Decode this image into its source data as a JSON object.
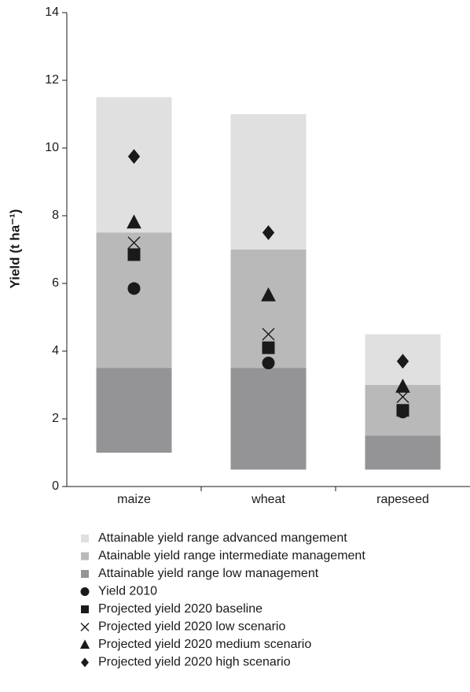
{
  "chart_data": {
    "type": "range-points",
    "ylabel": "Yield (t ha⁻¹)",
    "categories": [
      "maize",
      "wheat",
      "rapeseed"
    ],
    "ylim": [
      0,
      14
    ],
    "yticks": [
      0,
      2,
      4,
      6,
      8,
      10,
      12,
      14
    ],
    "series": [
      {
        "name": "Attainable yield range advanced mangement",
        "color": "#e0e0e0",
        "low": [
          7.5,
          7,
          3
        ],
        "high": [
          11.5,
          11,
          4.5
        ]
      },
      {
        "name": "Atainable yield range intermediate management",
        "color": "#b9b9ba",
        "low": [
          3.5,
          3.5,
          1.5
        ],
        "high": [
          7.5,
          7,
          3
        ]
      },
      {
        "name": "Attainable yield range low management",
        "color": "#949496",
        "low": [
          1,
          0.5,
          0.5
        ],
        "high": [
          3.5,
          3.5,
          1.5
        ]
      },
      {
        "name": "Yield 2010",
        "marker": "circle",
        "color": "#1a1a1a",
        "values": [
          5.85,
          3.65,
          2.2
        ]
      },
      {
        "name": "Projected yield 2020 baseline",
        "marker": "square",
        "color": "#1a1a1a",
        "values": [
          6.85,
          4.1,
          2.25
        ]
      },
      {
        "name": "Projected yield 2020 low scenario",
        "marker": "x",
        "color": "#1a1a1a",
        "values": [
          7.2,
          4.5,
          2.65
        ]
      },
      {
        "name": "Projected yield 2020 medium scenario",
        "marker": "triangle",
        "color": "#1a1a1a",
        "values": [
          7.8,
          5.65,
          2.95
        ]
      },
      {
        "name": "Projected yield 2020 high scenario",
        "marker": "diamond",
        "color": "#1a1a1a",
        "values": [
          9.75,
          7.5,
          3.7
        ]
      }
    ]
  }
}
